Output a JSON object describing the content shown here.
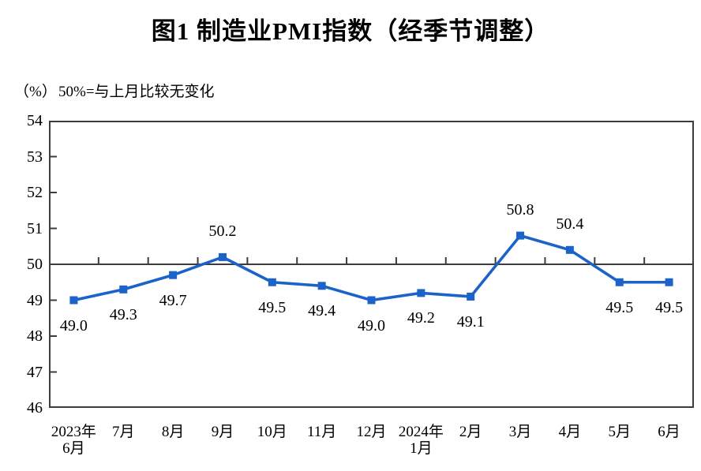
{
  "title": "图1  制造业PMI指数（经季节调整）",
  "unit_label": "（%）",
  "note": "50%=与上月比较无变化",
  "colors": {
    "line": "#1B63C9",
    "marker": "#1B63C9",
    "axis": "#3C3C3C",
    "reference_line": "#3C3C3C",
    "text": "#000000",
    "background": "#FFFFFF"
  },
  "chart_data": {
    "type": "line",
    "title": "图1  制造业PMI指数（经季节调整）",
    "subtitle": "50%=与上月比较无变化",
    "ylabel": "（%）",
    "xlabel": "",
    "ylim": [
      46,
      54
    ],
    "y_ticks": [
      46,
      47,
      48,
      49,
      50,
      51,
      52,
      53,
      54
    ],
    "reference_line": 50,
    "grid": false,
    "legend_position": "none",
    "marker_style": "square",
    "categories": [
      "2023年6月",
      "7月",
      "8月",
      "9月",
      "10月",
      "11月",
      "12月",
      "2024年1月",
      "2月",
      "3月",
      "4月",
      "5月",
      "6月"
    ],
    "x_tick_lines": [
      [
        "2023年",
        "6月"
      ],
      [
        "7月"
      ],
      [
        "8月"
      ],
      [
        "9月"
      ],
      [
        "10月"
      ],
      [
        "11月"
      ],
      [
        "12月"
      ],
      [
        "2024年",
        "1月"
      ],
      [
        "2月"
      ],
      [
        "3月"
      ],
      [
        "4月"
      ],
      [
        "5月"
      ],
      [
        "6月"
      ]
    ],
    "values": [
      49.0,
      49.3,
      49.7,
      50.2,
      49.5,
      49.4,
      49.0,
      49.2,
      49.1,
      50.8,
      50.4,
      49.5,
      49.5
    ],
    "data_labels": [
      "49.0",
      "49.3",
      "49.7",
      "50.2",
      "49.5",
      "49.4",
      "49.0",
      "49.2",
      "49.1",
      "50.8",
      "50.4",
      "49.5",
      "49.5"
    ]
  }
}
